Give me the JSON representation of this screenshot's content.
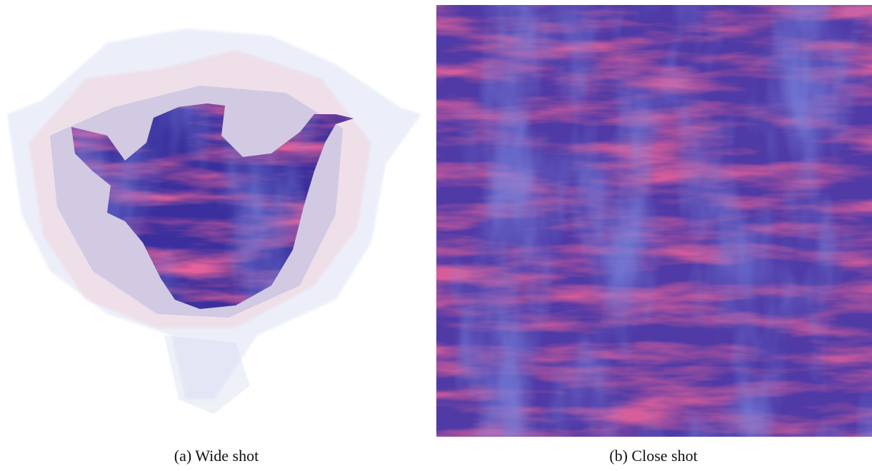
{
  "figure": {
    "subfigures": [
      {
        "caption": "(a) Wide shot"
      },
      {
        "caption": "(b) Close shot"
      }
    ]
  }
}
